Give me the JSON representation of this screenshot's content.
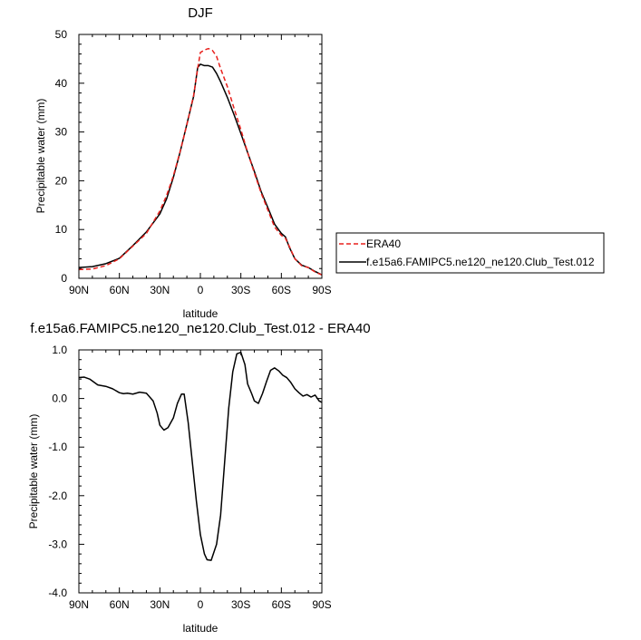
{
  "chart_data": [
    {
      "type": "line",
      "title": "DJF",
      "xlabel": "latitude",
      "ylabel": "Precipitable water (mm)",
      "xlim": [
        -90,
        90
      ],
      "ylim": [
        0,
        50
      ],
      "x_ticks": [
        -90,
        -60,
        -30,
        0,
        30,
        60,
        90
      ],
      "x_tick_labels": [
        "90N",
        "60N",
        "30N",
        "0",
        "30S",
        "60S",
        "90S"
      ],
      "y_ticks": [
        0,
        10,
        20,
        30,
        40,
        50
      ],
      "y_tick_labels": [
        "0",
        "10",
        "20",
        "30",
        "40",
        "50"
      ],
      "legend_position": "right",
      "series": [
        {
          "name": "ERA40",
          "color": "#e8211d",
          "dash": "dashed",
          "x": [
            -90,
            -80,
            -70,
            -60,
            -50,
            -40,
            -30,
            -25,
            -20,
            -15,
            -10,
            -5,
            -2,
            0,
            3,
            6,
            9,
            12,
            15,
            20,
            25,
            30,
            35,
            40,
            45,
            50,
            55,
            60,
            63,
            66,
            70,
            75,
            80,
            85,
            90
          ],
          "y": [
            1.8,
            1.9,
            2.6,
            4.0,
            6.6,
            9.2,
            13.8,
            17.0,
            21.0,
            26.0,
            31.5,
            37.5,
            43.0,
            46.3,
            46.8,
            47.1,
            46.7,
            45.5,
            43.0,
            39.3,
            34.8,
            30.5,
            25.8,
            21.6,
            17.5,
            14.0,
            10.5,
            8.8,
            8.2,
            6.5,
            4.0,
            2.6,
            2.2,
            1.3,
            0.7
          ]
        },
        {
          "name": "f.e15a6.FAMIPC5.ne120_ne120.Club_Test.012",
          "color": "#000000",
          "dash": "solid",
          "x": [
            -90,
            -80,
            -70,
            -60,
            -50,
            -40,
            -30,
            -25,
            -20,
            -15,
            -10,
            -5,
            -2,
            0,
            3,
            6,
            9,
            12,
            15,
            20,
            25,
            30,
            35,
            40,
            45,
            50,
            55,
            60,
            63,
            66,
            70,
            75,
            80,
            85,
            90
          ],
          "y": [
            2.2,
            2.4,
            3.0,
            4.1,
            6.7,
            9.5,
            13.2,
            16.3,
            20.7,
            25.9,
            31.6,
            37.3,
            43.2,
            43.9,
            43.6,
            43.6,
            43.3,
            42.0,
            40.3,
            37.1,
            33.5,
            29.7,
            25.8,
            21.9,
            17.8,
            14.5,
            11.1,
            9.2,
            8.5,
            6.3,
            4.0,
            2.7,
            2.2,
            1.4,
            0.7
          ]
        }
      ]
    },
    {
      "type": "line",
      "title": "f.e15a6.FAMIPC5.ne120_ne120.Club_Test.012 - ERA40",
      "xlabel": "latitude",
      "ylabel": "Precipitable water (mm)",
      "xlim": [
        -90,
        90
      ],
      "ylim": [
        -4.0,
        1.0
      ],
      "x_ticks": [
        -90,
        -60,
        -30,
        0,
        30,
        60,
        90
      ],
      "x_tick_labels": [
        "90N",
        "60N",
        "30N",
        "0",
        "30S",
        "60S",
        "90S"
      ],
      "y_ticks": [
        -4.0,
        -3.0,
        -2.0,
        -1.0,
        0.0,
        1.0
      ],
      "y_tick_labels": [
        "-4.0",
        "-3.0",
        "-2.0",
        "-1.0",
        "0.0",
        "1.0"
      ],
      "series": [
        {
          "color": "#000000",
          "dash": "solid",
          "x": [
            -90,
            -86,
            -82,
            -76,
            -70,
            -65,
            -60,
            -57,
            -54,
            -50,
            -45,
            -40,
            -35,
            -32,
            -30,
            -27,
            -24,
            -20,
            -17,
            -14,
            -12,
            -9,
            -6,
            -3,
            0,
            3,
            5,
            8,
            12,
            15,
            18,
            21,
            24,
            27,
            30,
            33,
            35,
            38,
            40,
            43,
            46,
            49,
            52,
            55,
            58,
            61,
            64,
            67,
            70,
            73,
            76,
            79,
            82,
            85,
            88,
            90
          ],
          "y": [
            0.43,
            0.44,
            0.4,
            0.28,
            0.25,
            0.2,
            0.12,
            0.1,
            0.11,
            0.09,
            0.13,
            0.11,
            -0.05,
            -0.3,
            -0.55,
            -0.65,
            -0.6,
            -0.4,
            -0.1,
            0.09,
            0.09,
            -0.5,
            -1.3,
            -2.1,
            -2.8,
            -3.2,
            -3.32,
            -3.33,
            -3.0,
            -2.4,
            -1.3,
            -0.2,
            0.55,
            0.92,
            0.95,
            0.7,
            0.3,
            0.1,
            -0.05,
            -0.1,
            0.1,
            0.35,
            0.58,
            0.63,
            0.57,
            0.48,
            0.43,
            0.33,
            0.2,
            0.12,
            0.05,
            0.08,
            0.03,
            0.07,
            -0.05,
            -0.08
          ]
        }
      ]
    }
  ]
}
